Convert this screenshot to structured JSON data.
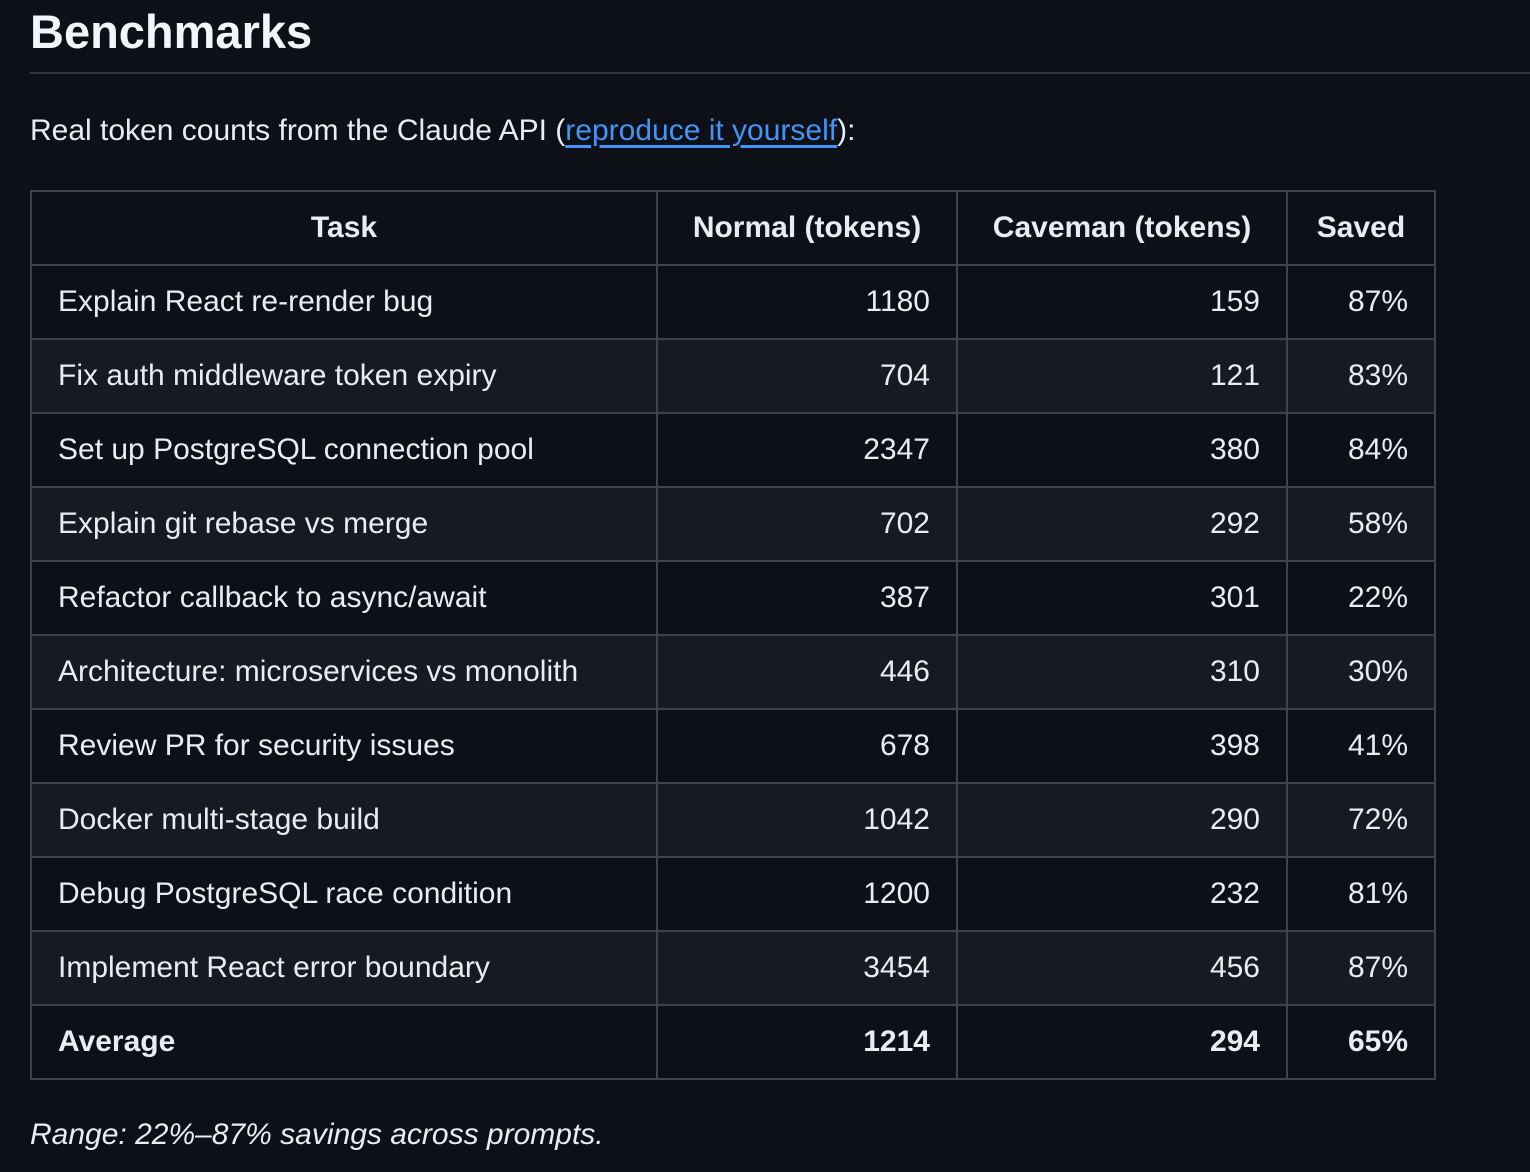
{
  "heading": "Benchmarks",
  "intro": {
    "prefix": "Real token counts from the Claude API (",
    "link_text": "reproduce it yourself",
    "suffix": "):"
  },
  "colors": {
    "background": "#0d1117",
    "row_alt": "#161b22",
    "table_border": "#3d444d",
    "heading_rule": "#30363d",
    "text": "#e6edf3",
    "heading_text": "#f0f6fc",
    "link": "#4493f8"
  },
  "chart_data": {
    "type": "table",
    "title": "Benchmarks",
    "headers": [
      "Task",
      "Normal (tokens)",
      "Caveman (tokens)",
      "Saved"
    ],
    "rows": [
      [
        "Explain React re-render bug",
        "1180",
        "159",
        "87%"
      ],
      [
        "Fix auth middleware token expiry",
        "704",
        "121",
        "83%"
      ],
      [
        "Set up PostgreSQL connection pool",
        "2347",
        "380",
        "84%"
      ],
      [
        "Explain git rebase vs merge",
        "702",
        "292",
        "58%"
      ],
      [
        "Refactor callback to async/await",
        "387",
        "301",
        "22%"
      ],
      [
        "Architecture: microservices vs monolith",
        "446",
        "310",
        "30%"
      ],
      [
        "Review PR for security issues",
        "678",
        "398",
        "41%"
      ],
      [
        "Docker multi-stage build",
        "1042",
        "290",
        "72%"
      ],
      [
        "Debug PostgreSQL race condition",
        "1200",
        "232",
        "81%"
      ],
      [
        "Implement React error boundary",
        "3454",
        "456",
        "87%"
      ]
    ],
    "summary_row": [
      "Average",
      "1214",
      "294",
      "65%"
    ]
  },
  "footnote": "Range: 22%–87% savings across prompts."
}
